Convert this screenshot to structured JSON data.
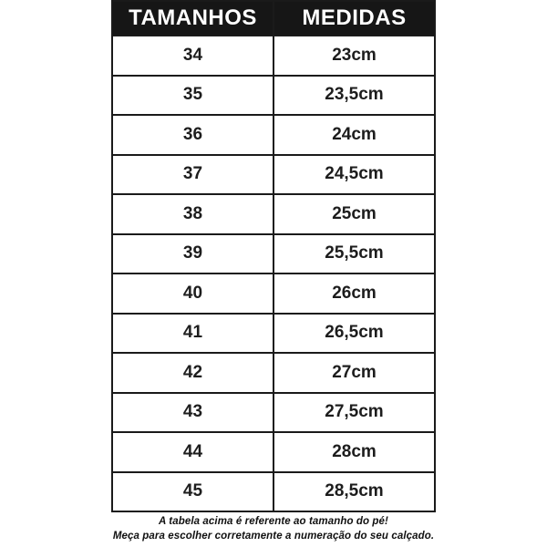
{
  "chart_data": {
    "type": "table",
    "columns": [
      "TAMANHOS",
      "MEDIDAS"
    ],
    "rows": [
      [
        "34",
        "23cm"
      ],
      [
        "35",
        "23,5cm"
      ],
      [
        "36",
        "24cm"
      ],
      [
        "37",
        "24,5cm"
      ],
      [
        "38",
        "25cm"
      ],
      [
        "39",
        "25,5cm"
      ],
      [
        "40",
        "26cm"
      ],
      [
        "41",
        "26,5cm"
      ],
      [
        "42",
        "27cm"
      ],
      [
        "43",
        "27,5cm"
      ],
      [
        "44",
        "28cm"
      ],
      [
        "45",
        "28,5cm"
      ]
    ],
    "title": "",
    "layout_hints": {
      "header_style": "black background, white bold uppercase text",
      "alignment": "center",
      "grid": "on"
    }
  },
  "footer": {
    "line1": "A tabela acima é referente ao tamanho do pé!",
    "line2": "Meça para escolher corretamente a numeração do seu calçado."
  },
  "colors": {
    "header-bg": "#161616",
    "header-text": "#ffffff",
    "border": "#1a1a1a",
    "cell-text": "#1d1d1d",
    "footer-text": "#111111"
  }
}
